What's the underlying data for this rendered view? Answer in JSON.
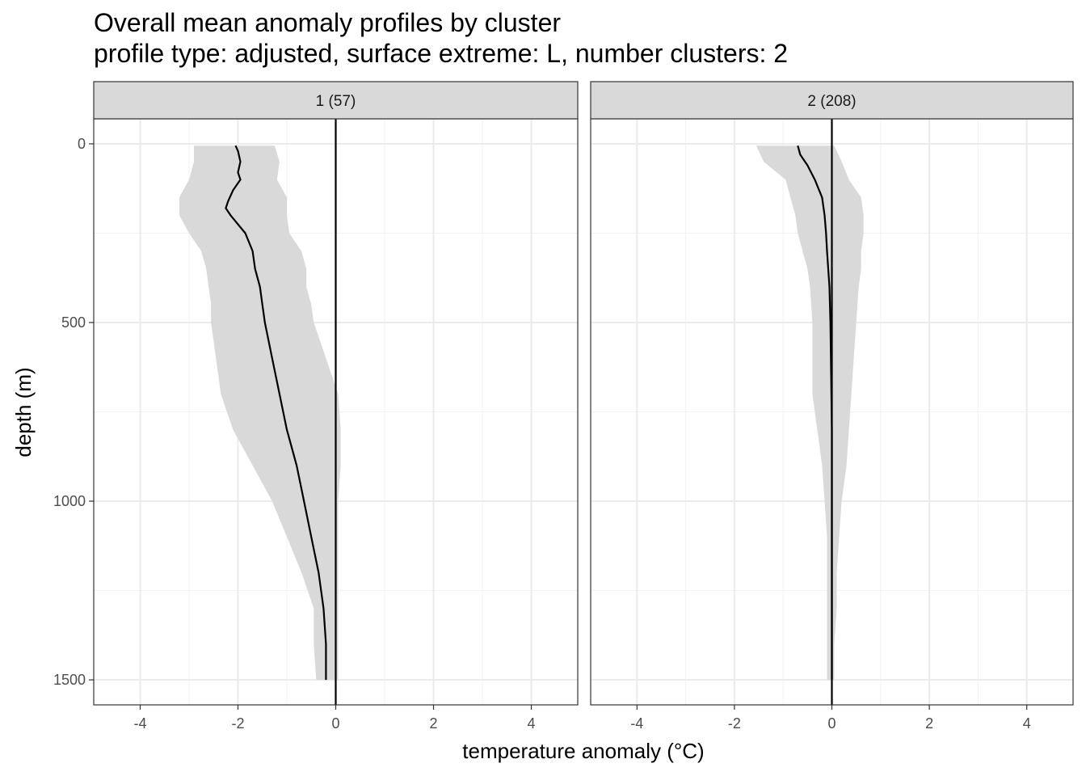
{
  "title": "Overall mean anomaly profiles by cluster",
  "subtitle": "profile type: adjusted, surface extreme: L, number clusters: 2",
  "chart_data": {
    "type": "line",
    "title": "Overall mean anomaly profiles by cluster",
    "subtitle": "profile type: adjusted, surface extreme: L, number clusters: 2",
    "xlabel": "temperature anomaly (°C)",
    "ylabel": "depth (m)",
    "xlim": [
      -4.95,
      4.95
    ],
    "ylim": [
      1570,
      -70
    ],
    "y_reversed": true,
    "x_ticks": [
      -4,
      -2,
      0,
      2,
      4
    ],
    "x_tick_labels": [
      "-4",
      "-2",
      "0",
      "2",
      "4"
    ],
    "y_ticks": [
      0,
      500,
      1000,
      1500
    ],
    "y_tick_labels": [
      "0",
      "500",
      "1000",
      "1500"
    ],
    "grid": true,
    "reference_line_x": 0,
    "band_color": "#d9d9d9",
    "line_color": "#000000",
    "facets": [
      {
        "label": "1 (57)",
        "mean": {
          "depth": [
            5,
            20,
            50,
            80,
            100,
            130,
            160,
            180,
            200,
            250,
            300,
            350,
            400,
            450,
            500,
            600,
            700,
            800,
            900,
            1000,
            1100,
            1200,
            1300,
            1400,
            1500
          ],
          "value": [
            -2.05,
            -2.0,
            -1.95,
            -2.0,
            -1.95,
            -2.1,
            -2.2,
            -2.25,
            -2.15,
            -1.85,
            -1.7,
            -1.65,
            -1.55,
            -1.5,
            -1.45,
            -1.3,
            -1.15,
            -1.0,
            -0.8,
            -0.65,
            -0.5,
            -0.35,
            -0.25,
            -0.2,
            -0.2
          ]
        },
        "band": {
          "depth": [
            5,
            50,
            100,
            150,
            200,
            250,
            300,
            350,
            400,
            450,
            500,
            600,
            700,
            800,
            900,
            1000,
            1100,
            1200,
            1300,
            1400,
            1500
          ],
          "lower": [
            -2.9,
            -2.9,
            -3.0,
            -3.2,
            -3.2,
            -3.0,
            -2.75,
            -2.65,
            -2.6,
            -2.55,
            -2.55,
            -2.45,
            -2.35,
            -2.1,
            -1.7,
            -1.3,
            -1.0,
            -0.7,
            -0.45,
            -0.45,
            -0.4
          ],
          "upper": [
            -1.25,
            -1.15,
            -1.2,
            -1.0,
            -1.0,
            -0.95,
            -0.7,
            -0.6,
            -0.6,
            -0.5,
            -0.45,
            -0.2,
            0.05,
            0.1,
            0.1,
            0.05,
            0.05,
            0.05,
            0.05,
            0.05,
            0.05
          ]
        }
      },
      {
        "label": "2 (208)",
        "mean": {
          "depth": [
            5,
            30,
            60,
            100,
            150,
            200,
            250,
            300,
            400,
            500,
            600,
            800,
            1000,
            1200,
            1400,
            1500
          ],
          "value": [
            -0.7,
            -0.65,
            -0.5,
            -0.35,
            -0.2,
            -0.15,
            -0.12,
            -0.1,
            -0.05,
            -0.03,
            -0.02,
            0.0,
            0.0,
            0.0,
            0.0,
            0.0
          ]
        },
        "band": {
          "depth": [
            5,
            50,
            100,
            150,
            200,
            250,
            300,
            350,
            400,
            500,
            600,
            700,
            800,
            900,
            1000,
            1100,
            1200,
            1300,
            1400,
            1500
          ],
          "lower": [
            -1.55,
            -1.4,
            -0.95,
            -0.85,
            -0.75,
            -0.7,
            -0.6,
            -0.5,
            -0.45,
            -0.4,
            -0.4,
            -0.4,
            -0.3,
            -0.2,
            -0.15,
            -0.1,
            -0.1,
            -0.1,
            -0.1,
            -0.1
          ],
          "upper": [
            0.05,
            0.2,
            0.35,
            0.6,
            0.65,
            0.65,
            0.6,
            0.6,
            0.55,
            0.5,
            0.45,
            0.4,
            0.35,
            0.3,
            0.2,
            0.15,
            0.1,
            0.1,
            0.05,
            0.05
          ]
        }
      }
    ]
  }
}
